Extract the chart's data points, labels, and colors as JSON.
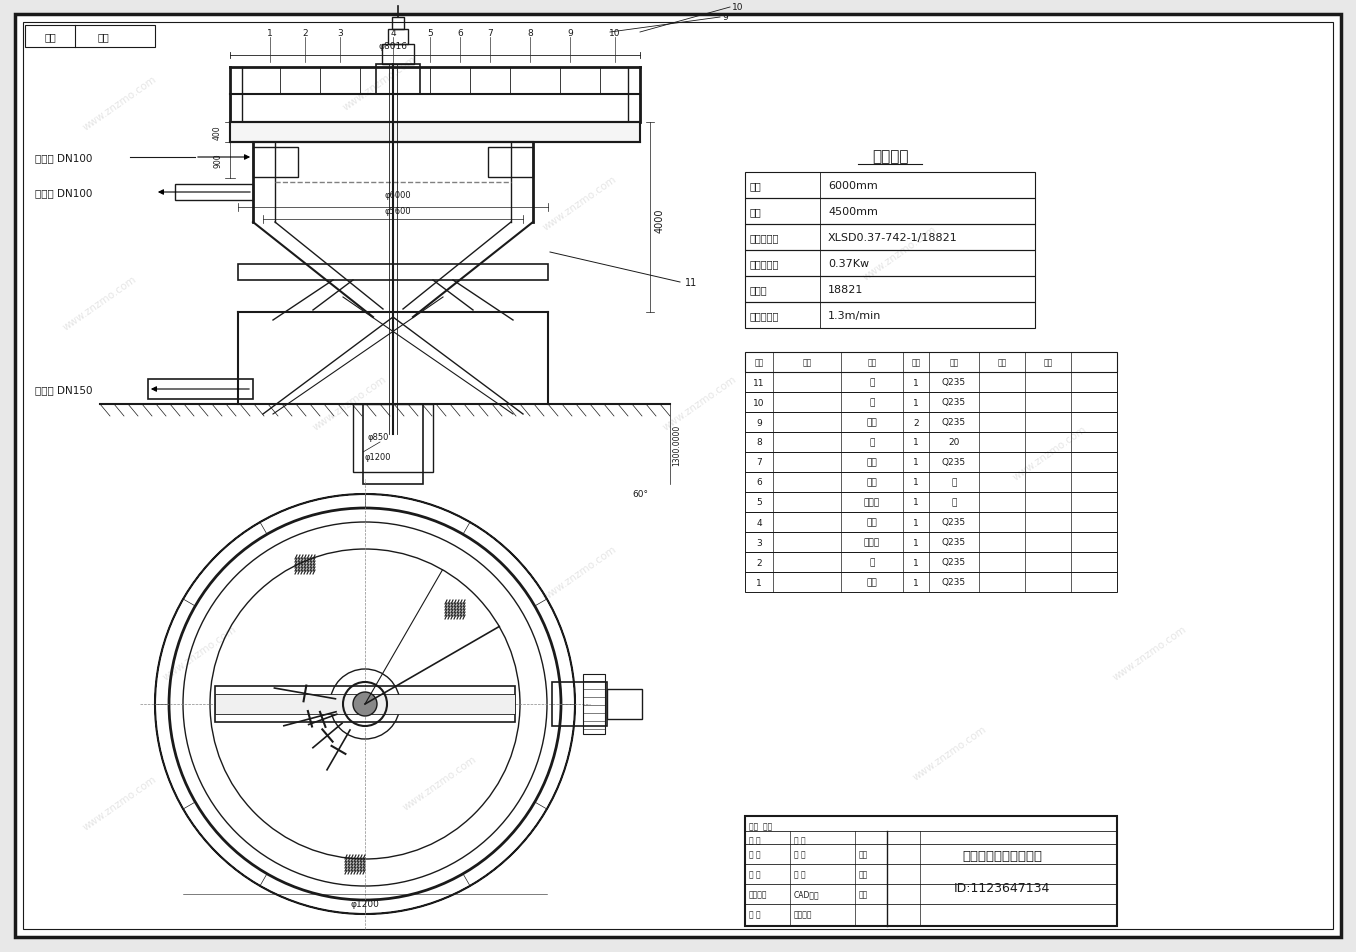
{
  "bg_color": "#e8e8e8",
  "drawing_bg": "#ffffff",
  "line_color": "#000000",
  "title": "浓缩池及刮泥机外形图",
  "id_text": "ID:1123647134",
  "tech_params_title": "技术参数",
  "tech_params": [
    [
      "池径",
      "6000mm"
    ],
    [
      "池深",
      "4500mm"
    ],
    [
      "减速机型号",
      "XLSD0.37-742-1/18821"
    ],
    [
      "减速机功率",
      "0.37Kw"
    ],
    [
      "减速比",
      "18821"
    ],
    [
      "周边线速度",
      "1.3m/min"
    ]
  ],
  "bom_rows": [
    [
      "11",
      "",
      "耙",
      "1",
      "Q235",
      "",
      ""
    ],
    [
      "10",
      "",
      "耙",
      "1",
      "Q235",
      "",
      ""
    ],
    [
      "9",
      "",
      "刮板",
      "2",
      "Q235",
      "",
      ""
    ],
    [
      "8",
      "",
      "桩",
      "1",
      "20",
      "",
      ""
    ],
    [
      "7",
      "",
      "横梁",
      "1",
      "Q235",
      "",
      ""
    ],
    [
      "6",
      "",
      "轴承",
      "1",
      "铸",
      "",
      ""
    ],
    [
      "5",
      "",
      "轴承座",
      "1",
      "铸",
      "",
      ""
    ],
    [
      "4",
      "",
      "耙杆",
      "1",
      "Q235",
      "",
      ""
    ],
    [
      "3",
      "",
      "减速机",
      "1",
      "Q235",
      "",
      ""
    ],
    [
      "2",
      "",
      "框",
      "1",
      "Q235",
      "",
      ""
    ],
    [
      "1",
      "",
      "耙杆",
      "1",
      "Q235",
      "",
      ""
    ]
  ],
  "watermark": "www.znzmo.com",
  "inlet_label1": "进水口 DN100",
  "inlet_label2": "溢流口 DN100",
  "outlet_label": "出泥口 DN150",
  "part_numbers_top": [
    "1",
    "2",
    "3",
    "4",
    "5",
    "6",
    "7",
    "8",
    "9",
    "10"
  ],
  "corner_box_texts": [
    "结构",
    "各部"
  ]
}
